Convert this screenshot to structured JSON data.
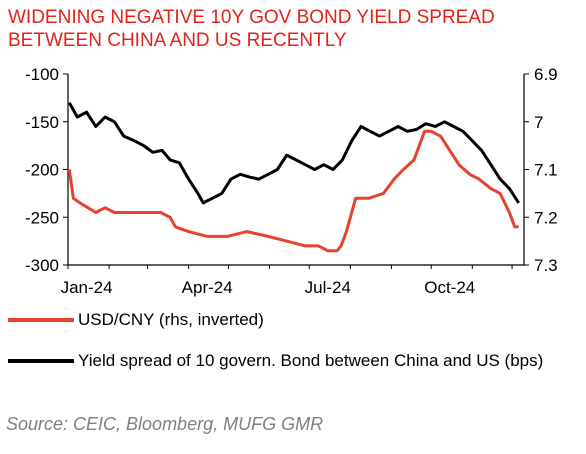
{
  "title_lines": [
    "WIDENING NEGATIVE 10Y GOV BOND YIELD SPREAD",
    "BETWEEN CHINA AND US RECENTLY"
  ],
  "source": "Source: CEIC, Bloomberg, MUFG GMR",
  "colors": {
    "title": "#e2231a",
    "usdcny": "#e8412e",
    "spread": "#000000",
    "source": "#7f7f7f"
  },
  "chart_data": {
    "type": "line",
    "title": "WIDENING NEGATIVE 10Y GOV BOND YIELD SPREAD BETWEEN CHINA AND US RECENTLY",
    "x_ticks": [
      "Jan-24",
      "Apr-24",
      "Jul-24",
      "Oct-24"
    ],
    "x_range": [
      "2024-01-01",
      "2024-12-10"
    ],
    "y_left": {
      "range": [
        -300,
        -100
      ],
      "ticks": [
        "-100",
        "-150",
        "-200",
        "-250",
        "-300"
      ]
    },
    "y_right": {
      "range": [
        6.9,
        7.3
      ],
      "inverted": true,
      "ticks": [
        "6.9",
        "7",
        "7.1",
        "7.2",
        "7.3"
      ]
    },
    "grid": false,
    "legend_position": "bottom",
    "series": [
      {
        "name": "USD/CNY (rhs, inverted)",
        "axis": "right",
        "color": "#e8412e",
        "points": [
          [
            "2024-01-02",
            7.1
          ],
          [
            "2024-01-05",
            7.16
          ],
          [
            "2024-01-10",
            7.17
          ],
          [
            "2024-01-16",
            7.18
          ],
          [
            "2024-01-22",
            7.19
          ],
          [
            "2024-01-29",
            7.18
          ],
          [
            "2024-02-05",
            7.19
          ],
          [
            "2024-02-12",
            7.19
          ],
          [
            "2024-02-20",
            7.19
          ],
          [
            "2024-02-27",
            7.19
          ],
          [
            "2024-03-04",
            7.19
          ],
          [
            "2024-03-11",
            7.19
          ],
          [
            "2024-03-18",
            7.2
          ],
          [
            "2024-03-22",
            7.22
          ],
          [
            "2024-04-01",
            7.23
          ],
          [
            "2024-04-15",
            7.24
          ],
          [
            "2024-04-30",
            7.24
          ],
          [
            "2024-05-15",
            7.23
          ],
          [
            "2024-05-31",
            7.24
          ],
          [
            "2024-06-14",
            7.25
          ],
          [
            "2024-06-28",
            7.26
          ],
          [
            "2024-07-08",
            7.26
          ],
          [
            "2024-07-15",
            7.27
          ],
          [
            "2024-07-22",
            7.27
          ],
          [
            "2024-07-25",
            7.26
          ],
          [
            "2024-07-29",
            7.23
          ],
          [
            "2024-08-05",
            7.16
          ],
          [
            "2024-08-15",
            7.16
          ],
          [
            "2024-08-26",
            7.15
          ],
          [
            "2024-09-03",
            7.12
          ],
          [
            "2024-09-10",
            7.1
          ],
          [
            "2024-09-18",
            7.08
          ],
          [
            "2024-09-26",
            7.02
          ],
          [
            "2024-10-01",
            7.02
          ],
          [
            "2024-10-08",
            7.03
          ],
          [
            "2024-10-15",
            7.06
          ],
          [
            "2024-10-22",
            7.09
          ],
          [
            "2024-10-30",
            7.11
          ],
          [
            "2024-11-06",
            7.12
          ],
          [
            "2024-11-15",
            7.14
          ],
          [
            "2024-11-22",
            7.15
          ],
          [
            "2024-11-29",
            7.19
          ],
          [
            "2024-12-03",
            7.22
          ],
          [
            "2024-12-06",
            7.22
          ]
        ]
      },
      {
        "name": "Yield spread of 10 govern. Bond between China and US (bps)",
        "axis": "left",
        "color": "#000000",
        "points": [
          [
            "2024-01-02",
            -130
          ],
          [
            "2024-01-08",
            -145
          ],
          [
            "2024-01-15",
            -140
          ],
          [
            "2024-01-22",
            -155
          ],
          [
            "2024-01-29",
            -145
          ],
          [
            "2024-02-05",
            -150
          ],
          [
            "2024-02-12",
            -165
          ],
          [
            "2024-02-20",
            -170
          ],
          [
            "2024-02-27",
            -175
          ],
          [
            "2024-03-05",
            -182
          ],
          [
            "2024-03-12",
            -180
          ],
          [
            "2024-03-18",
            -190
          ],
          [
            "2024-03-25",
            -193
          ],
          [
            "2024-04-01",
            -210
          ],
          [
            "2024-04-08",
            -225
          ],
          [
            "2024-04-12",
            -235
          ],
          [
            "2024-04-19",
            -230
          ],
          [
            "2024-04-26",
            -225
          ],
          [
            "2024-05-03",
            -210
          ],
          [
            "2024-05-10",
            -205
          ],
          [
            "2024-05-17",
            -208
          ],
          [
            "2024-05-24",
            -210
          ],
          [
            "2024-05-31",
            -205
          ],
          [
            "2024-06-07",
            -200
          ],
          [
            "2024-06-14",
            -185
          ],
          [
            "2024-06-21",
            -190
          ],
          [
            "2024-06-28",
            -195
          ],
          [
            "2024-07-05",
            -200
          ],
          [
            "2024-07-12",
            -195
          ],
          [
            "2024-07-19",
            -200
          ],
          [
            "2024-07-26",
            -190
          ],
          [
            "2024-08-02",
            -170
          ],
          [
            "2024-08-09",
            -155
          ],
          [
            "2024-08-16",
            -160
          ],
          [
            "2024-08-23",
            -165
          ],
          [
            "2024-08-30",
            -160
          ],
          [
            "2024-09-06",
            -155
          ],
          [
            "2024-09-13",
            -160
          ],
          [
            "2024-09-20",
            -158
          ],
          [
            "2024-09-27",
            -152
          ],
          [
            "2024-10-04",
            -155
          ],
          [
            "2024-10-11",
            -150
          ],
          [
            "2024-10-18",
            -155
          ],
          [
            "2024-10-25",
            -160
          ],
          [
            "2024-11-01",
            -170
          ],
          [
            "2024-11-08",
            -180
          ],
          [
            "2024-11-15",
            -195
          ],
          [
            "2024-11-22",
            -210
          ],
          [
            "2024-11-29",
            -220
          ],
          [
            "2024-12-06",
            -235
          ]
        ]
      }
    ]
  }
}
